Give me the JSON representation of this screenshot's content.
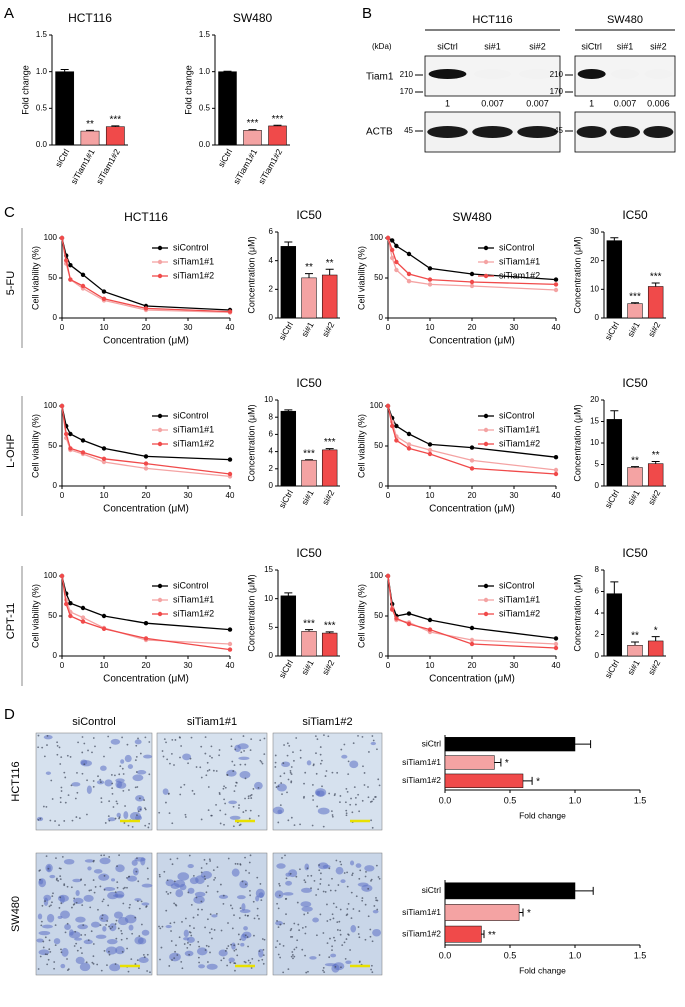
{
  "panel_labels": [
    "A",
    "B",
    "C",
    "D"
  ],
  "blot": {
    "kda_label": "(kDa)",
    "cell_lines": [
      {
        "name": "HCT116",
        "lanes": [
          "siCtrl",
          "si#1",
          "si#2"
        ],
        "quant": [
          1,
          0.007,
          0.007
        ]
      },
      {
        "name": "SW480",
        "lanes": [
          "siCtrl",
          "si#1",
          "si#2"
        ],
        "quant": [
          1,
          0.007,
          0.006
        ]
      }
    ],
    "proteins": [
      {
        "name": "Tiam1",
        "markers": [
          210,
          170
        ]
      },
      {
        "name": "ACTB",
        "markers": [
          45
        ]
      }
    ]
  },
  "micrographs": {
    "columns": [
      "siControl",
      "siTiam1#1",
      "siTiam1#2"
    ],
    "rows": [
      "HCT116",
      "SW480"
    ]
  },
  "chart_data": [
    {
      "type": "bar",
      "title": "HCT116",
      "ylabel": "Fold change",
      "categories": [
        "siCtrl",
        "siTiam1#1",
        "siTiam1#2"
      ],
      "values": [
        1.0,
        0.19,
        0.25
      ],
      "errors": [
        0.03,
        0.01,
        0.01
      ],
      "significance": [
        null,
        "**",
        "***"
      ],
      "colors": [
        "#000000",
        "#f4a3a3",
        "#f04a4a"
      ],
      "ylim": [
        0,
        1.5
      ],
      "yticks": [
        {
          "value": 0,
          "label": "0.0"
        },
        0.5,
        {
          "value": 1,
          "label": "1.0"
        },
        1.5
      ]
    },
    {
      "type": "bar",
      "title": "SW480",
      "ylabel": "Fold change",
      "categories": [
        "siCtrl",
        "siTiam1#1",
        "siTiam1#2"
      ],
      "values": [
        1.0,
        0.2,
        0.26
      ],
      "errors": [
        0.005,
        0.01,
        0.01
      ],
      "significance": [
        null,
        "***",
        "***"
      ],
      "colors": [
        "#000000",
        "#f4a3a3",
        "#f04a4a"
      ],
      "ylim": [
        0,
        1.5
      ],
      "yticks": [
        {
          "value": 0,
          "label": "0.0"
        },
        0.5,
        {
          "value": 1,
          "label": "1.0"
        },
        1.5
      ]
    },
    {
      "type": "line",
      "title": "HCT116",
      "row_label": "5-FU",
      "xlabel": "Concentration (μM)",
      "ylabel": "Cell viability (%)",
      "x": [
        0,
        1,
        2,
        5,
        10,
        20,
        40
      ],
      "xlim": [
        0,
        40
      ],
      "xticks": [
        0,
        10,
        20,
        30,
        40
      ],
      "ylim": [
        0,
        100
      ],
      "yticks": [
        0,
        50,
        100
      ],
      "legend": "upper right",
      "series": [
        {
          "name": "siControl",
          "color": "#000000",
          "values": [
            100,
            78,
            66,
            54,
            33,
            15,
            10
          ]
        },
        {
          "name": "siTiam1#1",
          "color": "#f4a3a3",
          "values": [
            100,
            68,
            48,
            37,
            22,
            10,
            7
          ]
        },
        {
          "name": "siTiam1#2",
          "color": "#f04a4a",
          "values": [
            100,
            72,
            48,
            40,
            24,
            12,
            8
          ]
        }
      ]
    },
    {
      "type": "bar",
      "title": "IC50",
      "ylabel": "Concentration (μM)",
      "categories": [
        "siCtrl",
        "si#1",
        "si#2"
      ],
      "values": [
        5.0,
        2.8,
        3.0
      ],
      "errors": [
        0.3,
        0.3,
        0.4
      ],
      "significance": [
        null,
        "**",
        "**"
      ],
      "colors": [
        "#000000",
        "#f4a3a3",
        "#f04a4a"
      ],
      "ylim": [
        0,
        6
      ],
      "yticks": [
        0,
        2,
        4,
        6
      ]
    },
    {
      "type": "line",
      "title": "SW480",
      "xlabel": "Concentration (μM)",
      "ylabel": "Cell viability (%)",
      "x": [
        0,
        1,
        2,
        5,
        10,
        20,
        40
      ],
      "xlim": [
        0,
        40
      ],
      "xticks": [
        0,
        10,
        20,
        30,
        40
      ],
      "ylim": [
        0,
        100
      ],
      "yticks": [
        0,
        50,
        100
      ],
      "legend": "upper right",
      "series": [
        {
          "name": "siControl",
          "color": "#000000",
          "values": [
            100,
            97,
            90,
            80,
            62,
            55,
            48
          ]
        },
        {
          "name": "siTiam1#1",
          "color": "#f4a3a3",
          "values": [
            100,
            75,
            60,
            46,
            42,
            40,
            35
          ]
        },
        {
          "name": "siTiam1#2",
          "color": "#f04a4a",
          "values": [
            100,
            85,
            70,
            55,
            48,
            45,
            42
          ]
        }
      ]
    },
    {
      "type": "bar",
      "title": "IC50",
      "ylabel": "Concentration (μM)",
      "categories": [
        "siCtrl",
        "si#1",
        "si#2"
      ],
      "values": [
        27,
        5,
        11
      ],
      "errors": [
        1,
        0.3,
        1.2
      ],
      "significance": [
        null,
        "***",
        "***"
      ],
      "colors": [
        "#000000",
        "#f4a3a3",
        "#f04a4a"
      ],
      "ylim": [
        0,
        30
      ],
      "yticks": [
        0,
        10,
        20,
        30
      ]
    },
    {
      "type": "line",
      "row_label": "L-OHP",
      "xlabel": "Concentration (μM)",
      "ylabel": "Cell viability (%)",
      "x": [
        0,
        1,
        2,
        5,
        10,
        20,
        40
      ],
      "xlim": [
        0,
        40
      ],
      "xticks": [
        0,
        10,
        20,
        30,
        40
      ],
      "ylim": [
        0,
        100
      ],
      "yticks": [
        0,
        50,
        100
      ],
      "legend": "upper right",
      "series": [
        {
          "name": "siControl",
          "color": "#000000",
          "values": [
            100,
            75,
            65,
            57,
            47,
            37,
            33
          ]
        },
        {
          "name": "siTiam1#1",
          "color": "#f4a3a3",
          "values": [
            100,
            60,
            45,
            40,
            30,
            22,
            12
          ]
        },
        {
          "name": "siTiam1#2",
          "color": "#f04a4a",
          "values": [
            100,
            65,
            47,
            42,
            34,
            28,
            15
          ]
        }
      ]
    },
    {
      "type": "bar",
      "title": "IC50",
      "ylabel": "Concentration (μM)",
      "categories": [
        "siCtrl",
        "si#1",
        "si#2"
      ],
      "values": [
        8.7,
        3.0,
        4.2
      ],
      "errors": [
        0.15,
        0.05,
        0.15
      ],
      "significance": [
        null,
        "***",
        "***"
      ],
      "colors": [
        "#000000",
        "#f4a3a3",
        "#f04a4a"
      ],
      "ylim": [
        0,
        10
      ],
      "yticks": [
        0,
        2,
        4,
        6,
        8,
        10
      ]
    },
    {
      "type": "line",
      "xlabel": "Concentration (μM)",
      "ylabel": "Cell viability (%)",
      "x": [
        0,
        1,
        2,
        5,
        10,
        20,
        40
      ],
      "xlim": [
        0,
        40
      ],
      "xticks": [
        0,
        10,
        20,
        30,
        40
      ],
      "ylim": [
        0,
        100
      ],
      "yticks": [
        0,
        50,
        100
      ],
      "legend": "upper right",
      "series": [
        {
          "name": "siControl",
          "color": "#000000",
          "values": [
            100,
            85,
            75,
            65,
            52,
            48,
            36
          ]
        },
        {
          "name": "siTiam1#1",
          "color": "#f4a3a3",
          "values": [
            100,
            80,
            62,
            52,
            45,
            32,
            20
          ]
        },
        {
          "name": "siTiam1#2",
          "color": "#f04a4a",
          "values": [
            100,
            75,
            57,
            47,
            40,
            22,
            15
          ]
        }
      ]
    },
    {
      "type": "bar",
      "title": "IC50",
      "ylabel": "Concentration (μM)",
      "categories": [
        "siCtrl",
        "si#1",
        "si#2"
      ],
      "values": [
        15.5,
        4.3,
        5.2
      ],
      "errors": [
        2,
        0.2,
        0.5
      ],
      "significance": [
        null,
        "**",
        "**"
      ],
      "colors": [
        "#000000",
        "#f4a3a3",
        "#f04a4a"
      ],
      "ylim": [
        0,
        20
      ],
      "yticks": [
        0,
        5,
        10,
        15,
        20
      ]
    },
    {
      "type": "line",
      "row_label": "CPT-11",
      "xlabel": "Concentration (μM)",
      "ylabel": "Cell viability (%)",
      "x": [
        0,
        1,
        2,
        5,
        10,
        20,
        40
      ],
      "xlim": [
        0,
        40
      ],
      "xticks": [
        0,
        10,
        20,
        30,
        40
      ],
      "ylim": [
        0,
        100
      ],
      "yticks": [
        0,
        50,
        100
      ],
      "legend": "upper right",
      "series": [
        {
          "name": "siControl",
          "color": "#000000",
          "values": [
            100,
            78,
            66,
            60,
            50,
            41,
            33
          ]
        },
        {
          "name": "siTiam1#1",
          "color": "#f4a3a3",
          "values": [
            100,
            70,
            55,
            48,
            35,
            20,
            15
          ]
        },
        {
          "name": "siTiam1#2",
          "color": "#f04a4a",
          "values": [
            100,
            65,
            50,
            43,
            34,
            22,
            8
          ]
        }
      ]
    },
    {
      "type": "bar",
      "title": "IC50",
      "ylabel": "Concentration (μM)",
      "categories": [
        "siCtrl",
        "si#1",
        "si#2"
      ],
      "values": [
        10.5,
        4.3,
        4.0
      ],
      "errors": [
        0.5,
        0.3,
        0.2
      ],
      "significance": [
        null,
        "***",
        "***"
      ],
      "colors": [
        "#000000",
        "#f4a3a3",
        "#f04a4a"
      ],
      "ylim": [
        0,
        15
      ],
      "yticks": [
        0,
        5,
        10,
        15
      ]
    },
    {
      "type": "line",
      "xlabel": "Concentration (μM)",
      "ylabel": "Cell viability (%)",
      "x": [
        0,
        1,
        2,
        5,
        10,
        20,
        40
      ],
      "xlim": [
        0,
        40
      ],
      "xticks": [
        0,
        10,
        20,
        30,
        40
      ],
      "ylim": [
        0,
        100
      ],
      "yticks": [
        0,
        50,
        100
      ],
      "legend": "upper right",
      "series": [
        {
          "name": "siControl",
          "color": "#000000",
          "values": [
            100,
            65,
            50,
            53,
            45,
            35,
            22
          ]
        },
        {
          "name": "siTiam1#1",
          "color": "#f4a3a3",
          "values": [
            100,
            60,
            45,
            42,
            30,
            20,
            15
          ]
        },
        {
          "name": "siTiam1#2",
          "color": "#f04a4a",
          "values": [
            100,
            58,
            47,
            40,
            33,
            15,
            10
          ]
        }
      ]
    },
    {
      "type": "bar",
      "title": "IC50",
      "ylabel": "Concentration (μM)",
      "categories": [
        "siCtrl",
        "si#1",
        "si#2"
      ],
      "values": [
        5.8,
        1.0,
        1.4
      ],
      "errors": [
        1.1,
        0.3,
        0.4
      ],
      "significance": [
        null,
        "**",
        "*"
      ],
      "colors": [
        "#000000",
        "#f4a3a3",
        "#f04a4a"
      ],
      "ylim": [
        0,
        8
      ],
      "yticks": [
        0,
        2,
        4,
        6,
        8
      ]
    },
    {
      "type": "hbar",
      "xlabel": "Fold change",
      "categories": [
        "siCtrl",
        "siTiam1#1",
        "siTiam1#2"
      ],
      "values": [
        1.0,
        0.38,
        0.6
      ],
      "errors": [
        0.12,
        0.05,
        0.07
      ],
      "significance": [
        null,
        "*",
        "*"
      ],
      "colors": [
        "#000000",
        "#f4a3a3",
        "#f04a4a"
      ],
      "xlim": [
        0,
        1.5
      ],
      "xticks": [
        {
          "value": 0,
          "label": "0.0"
        },
        0.5,
        {
          "value": 1,
          "label": "1.0"
        },
        1.5
      ]
    },
    {
      "type": "hbar",
      "xlabel": "Fold change",
      "categories": [
        "siCtrl",
        "siTiam1#1",
        "siTiam1#2"
      ],
      "values": [
        1.0,
        0.57,
        0.28
      ],
      "errors": [
        0.14,
        0.03,
        0.02
      ],
      "significance": [
        null,
        "*",
        "**"
      ],
      "colors": [
        "#000000",
        "#f4a3a3",
        "#f04a4a"
      ],
      "xlim": [
        0,
        1.5
      ],
      "xticks": [
        {
          "value": 0,
          "label": "0.0"
        },
        0.5,
        {
          "value": 1,
          "label": "1.0"
        },
        1.5
      ]
    }
  ]
}
